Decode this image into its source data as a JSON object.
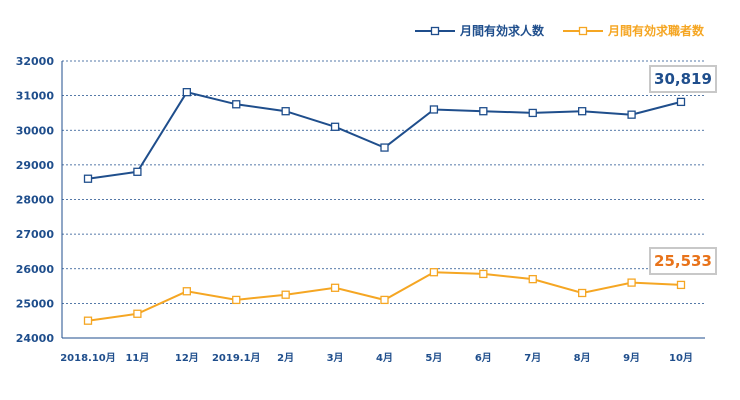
{
  "chart_data": {
    "type": "line",
    "categories": [
      "2018.10月",
      "11月",
      "12月",
      "2019.1月",
      "2月",
      "3月",
      "4月",
      "5月",
      "6月",
      "7月",
      "8月",
      "9月",
      "10月"
    ],
    "series": [
      {
        "name": "月間有効求人数",
        "color": "#1f4e8c",
        "values": [
          28600,
          28800,
          31100,
          30750,
          30550,
          30100,
          29500,
          30600,
          30550,
          30500,
          30550,
          30450,
          30819
        ]
      },
      {
        "name": "月間有効求職者数",
        "color": "#f5a623",
        "values": [
          24500,
          24700,
          25350,
          25100,
          25250,
          25450,
          25100,
          25900,
          25850,
          25700,
          25300,
          25600,
          25533
        ]
      }
    ],
    "ylim": [
      24000,
      32000
    ],
    "yticks": [
      24000,
      25000,
      26000,
      27000,
      28000,
      29000,
      30000,
      31000,
      32000
    ],
    "grid": true,
    "legend_position": "top-right",
    "annotations": [
      {
        "series": 0,
        "label": "30,819"
      },
      {
        "series": 1,
        "label": "25,533"
      }
    ]
  }
}
